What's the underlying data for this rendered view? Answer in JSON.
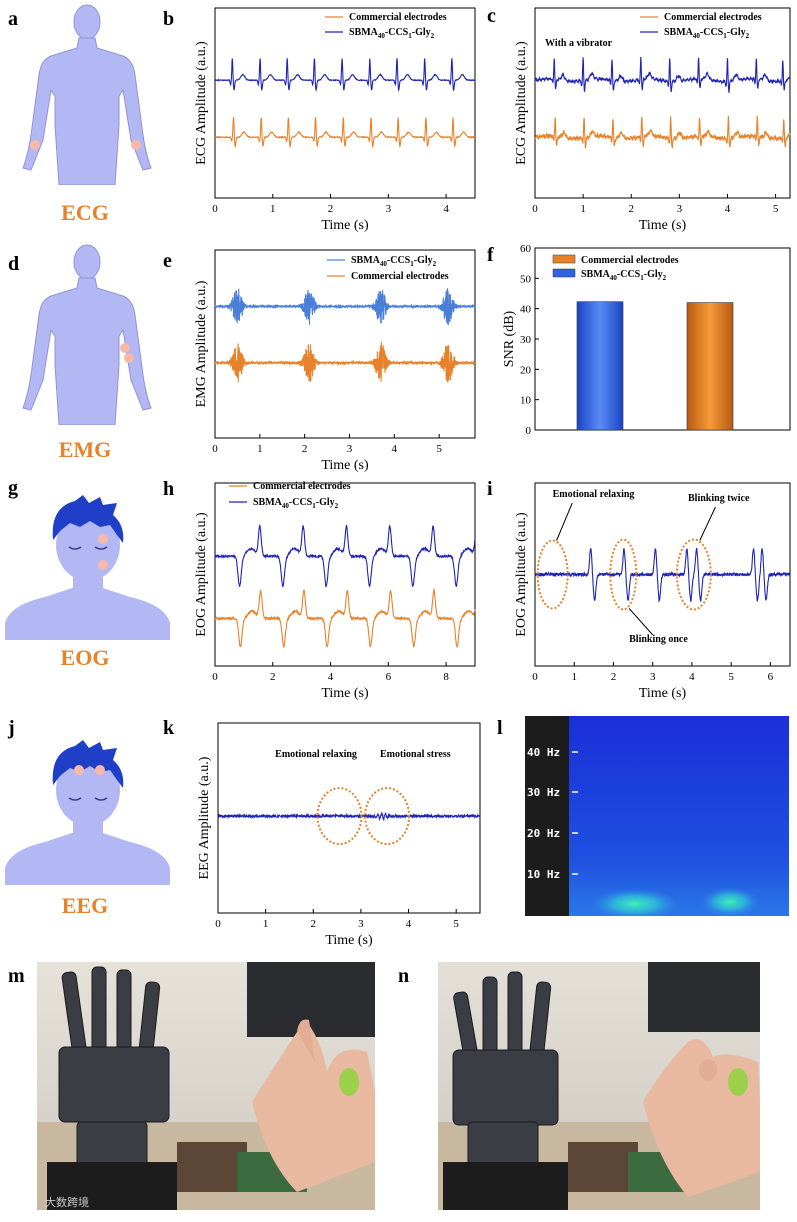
{
  "letters": [
    "a",
    "b",
    "c",
    "d",
    "e",
    "f",
    "g",
    "h",
    "i",
    "j",
    "k",
    "l",
    "m",
    "n"
  ],
  "body_labels": {
    "ecg": "ECG",
    "emg": "EMG",
    "eog": "EOG",
    "eeg": "EEG"
  },
  "colors": {
    "blue": "#1f24b4",
    "lightblue": "#4a7fd9",
    "orange": "#e8822a",
    "figure": "#b3b8f5",
    "face": "#b3b8f5",
    "hair": "#1f3fc9",
    "skin_dot": "#f7b8a8"
  },
  "watermark": "大数跨境",
  "chart_data": [
    {
      "id": "b",
      "type": "line",
      "ylabel": "ECG Amplitude (a.u.)",
      "xlabel": "Time (s)",
      "xlim": [
        0,
        4.5
      ],
      "xticks": [
        0,
        1,
        2,
        3,
        4
      ],
      "series": [
        {
          "name": "Commercial electrodes",
          "color": "#e8822a"
        },
        {
          "name": "SBMA40-CCS1-Gly2",
          "color": "#1f24b4"
        }
      ],
      "beats": [
        0.3,
        0.78,
        1.25,
        1.72,
        2.2,
        2.68,
        3.15,
        3.63,
        4.1
      ]
    },
    {
      "id": "c",
      "type": "line",
      "ylabel": "ECG Amplitude (a.u.)",
      "xlabel": "Time (s)",
      "xlim": [
        0,
        5.3
      ],
      "xticks": [
        0,
        1,
        2,
        3,
        4,
        5
      ],
      "annotation": "With a vibrator",
      "series": [
        {
          "name": "Commercial electrodes",
          "color": "#e8822a"
        },
        {
          "name": "SBMA40-CCS1-Gly2",
          "color": "#1f24b4"
        }
      ],
      "beats": [
        0.4,
        1.0,
        1.6,
        2.2,
        2.8,
        3.4,
        4.0,
        4.6,
        5.15
      ]
    },
    {
      "id": "e",
      "type": "line",
      "ylabel": "EMG Amplitude (a.u.)",
      "xlabel": "Time (s)",
      "xlim": [
        0,
        5.8
      ],
      "xticks": [
        0,
        1,
        2,
        3,
        4,
        5
      ],
      "series": [
        {
          "name": "SBMA40-CCS1-Gly2",
          "color": "#4a7fd9"
        },
        {
          "name": "Commercial electrodes",
          "color": "#e8822a"
        }
      ],
      "bursts": [
        0.5,
        2.1,
        3.7,
        5.2
      ]
    },
    {
      "id": "f",
      "type": "bar",
      "ylabel": "SNR (dB)",
      "ylim": [
        0,
        60
      ],
      "yticks": [
        0,
        10,
        20,
        30,
        40,
        50,
        60
      ],
      "categories": [
        "SBMA40-CCS1-Gly2",
        "Commercial electrodes"
      ],
      "values": [
        42.3,
        42.0
      ],
      "legend": [
        {
          "name": "Commercial electrodes",
          "color": "#e8822a"
        },
        {
          "name": "SBMA40-CCS1-Gly2",
          "color": "#2f63e0"
        }
      ]
    },
    {
      "id": "h",
      "type": "line",
      "ylabel": "EOG Amplitude (a.u.)",
      "xlabel": "Time (s)",
      "xlim": [
        0,
        9
      ],
      "xticks": [
        0,
        2,
        4,
        6,
        8
      ],
      "series": [
        {
          "name": "Commercial electrodes",
          "color": "#e8822a"
        },
        {
          "name": "SBMA40-CCS1-Gly2",
          "color": "#1f24b4"
        }
      ],
      "events": [
        0.9,
        2.4,
        3.9,
        5.4,
        6.9,
        8.4
      ]
    },
    {
      "id": "i",
      "type": "line",
      "ylabel": "EOG Amplitude (a.u.)",
      "xlabel": "Time (s)",
      "xlim": [
        0,
        6.5
      ],
      "xticks": [
        0,
        1,
        2,
        3,
        4,
        5,
        6
      ],
      "annotations": [
        "Emotional relaxing",
        "Blinking twice",
        "Blinking once"
      ],
      "blinks": [
        1.45,
        2.3,
        3.1,
        3.9,
        4.15,
        5.6,
        5.82
      ]
    },
    {
      "id": "k",
      "type": "line",
      "ylabel": "EEG Amplitude (a.u.)",
      "xlabel": "Time (s)",
      "xlim": [
        0,
        5.5
      ],
      "xticks": [
        0,
        1,
        2,
        3,
        4,
        5
      ],
      "annotations": [
        "Emotional relaxing",
        "Emotional stress"
      ]
    },
    {
      "id": "l",
      "type": "heatmap",
      "ytick_labels": [
        "40 Hz",
        "30 Hz",
        "20 Hz",
        "10 Hz"
      ]
    }
  ]
}
